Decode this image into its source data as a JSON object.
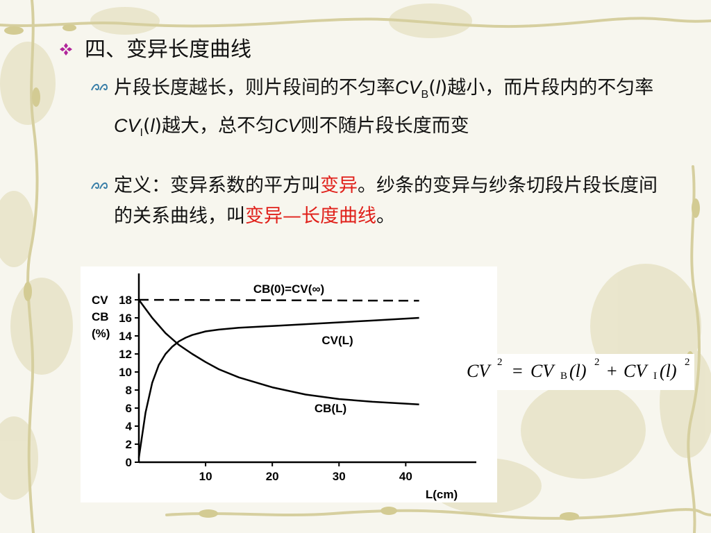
{
  "slide": {
    "title": "四、变异长度曲线",
    "bullets": [
      {
        "parts": [
          {
            "t": "片段长度越长，则片段间的不匀率"
          },
          {
            "t": "CV",
            "style": "it"
          },
          {
            "t": "B",
            "style": "sub"
          },
          {
            "t": "("
          },
          {
            "t": "l",
            "style": "it"
          },
          {
            "t": ")越小，而片段内的不匀率"
          },
          {
            "t": "CV",
            "style": "it"
          },
          {
            "t": "I",
            "style": "sub"
          },
          {
            "t": "("
          },
          {
            "t": "l",
            "style": "it"
          },
          {
            "t": ")越大，总不匀"
          },
          {
            "t": "CV",
            "style": "it"
          },
          {
            "t": "则不随片段长度而变"
          }
        ]
      },
      {
        "parts": [
          {
            "t": "定义：变异系数的平方叫"
          },
          {
            "t": "变异",
            "style": "red"
          },
          {
            "t": "。纱条的变异与纱条切段片段长度间的关系曲线，叫"
          },
          {
            "t": "变异—长度曲线",
            "style": "red"
          },
          {
            "t": "。"
          }
        ]
      }
    ]
  },
  "chart_data": {
    "type": "line",
    "ylabel": [
      "CV",
      "CB",
      "(%)"
    ],
    "xlabel": "L(cm)",
    "xlim": [
      0,
      46
    ],
    "ylim": [
      0,
      18
    ],
    "x_ticks": [
      "10",
      "20",
      "30",
      "40"
    ],
    "x_tick_values": [
      10,
      20,
      30,
      40
    ],
    "y_ticks": [
      "0",
      "2",
      "4",
      "6",
      "8",
      "10",
      "12",
      "14",
      "16",
      "18"
    ],
    "y_tick_values": [
      0,
      2,
      4,
      6,
      8,
      10,
      12,
      14,
      16,
      18
    ],
    "series": [
      {
        "name": "CB(0)=CV(∞)",
        "style": "dashed",
        "x": [
          0,
          42
        ],
        "y": [
          18,
          17.9
        ]
      },
      {
        "name": "CV(L)",
        "style": "solid",
        "x": [
          0,
          1,
          2,
          3,
          4,
          5,
          6,
          7,
          8,
          10,
          12,
          15,
          20,
          25,
          30,
          35,
          42
        ],
        "y": [
          0.5,
          5.5,
          8.8,
          10.8,
          12.0,
          12.8,
          13.4,
          13.8,
          14.1,
          14.5,
          14.7,
          14.9,
          15.1,
          15.3,
          15.5,
          15.7,
          16.0
        ]
      },
      {
        "name": "CB(L)",
        "style": "solid",
        "x": [
          0,
          2,
          4,
          6,
          8,
          10,
          12,
          15,
          20,
          25,
          30,
          35,
          42
        ],
        "y": [
          18,
          16.0,
          14.3,
          13.0,
          12.0,
          11.1,
          10.3,
          9.4,
          8.3,
          7.5,
          7.0,
          6.7,
          6.4
        ]
      }
    ]
  },
  "formula": {
    "lhs": "CV",
    "lhs_exp": "2",
    "eq": "=",
    "t1": "CV",
    "t1_sub": "B",
    "t1_arg": "(l)",
    "t1_exp": "2",
    "plus": "+",
    "t2": "CV",
    "t2_sub": "I",
    "t2_arg": "(l)",
    "t2_exp": "2"
  }
}
